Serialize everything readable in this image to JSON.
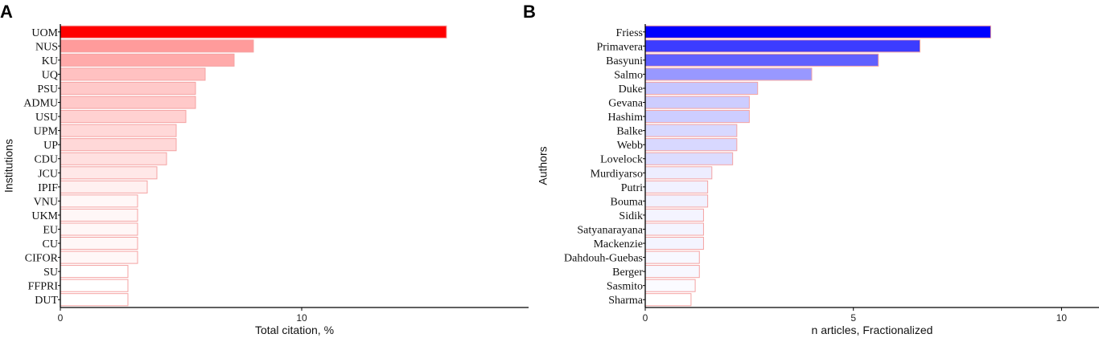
{
  "chart_data": [
    {
      "panel_label": "A",
      "type": "bar",
      "orientation": "horizontal",
      "ylabel": "Institutions",
      "xlabel": "Total citation, %",
      "categories": [
        "UOM",
        "NUS",
        "KU",
        "UQ",
        "PSU",
        "ADMU",
        "USU",
        "UPM",
        "UP",
        "CDU",
        "JCU",
        "IPIF",
        "VNU",
        "UKM",
        "EU",
        "CU",
        "CIFOR",
        "SU",
        "FFPRI",
        "DUT"
      ],
      "values": [
        16.0,
        8.0,
        7.2,
        6.0,
        5.6,
        5.6,
        5.2,
        4.8,
        4.8,
        4.4,
        4.0,
        3.6,
        3.2,
        3.2,
        3.2,
        3.2,
        3.2,
        2.8,
        2.8,
        2.8
      ],
      "xlim": [
        0,
        19.4
      ],
      "xticks": [
        0,
        10
      ],
      "colors": {
        "high": "#ff0000",
        "low": "#ffffff",
        "stroke": "#f4a3a3"
      }
    },
    {
      "panel_label": "B",
      "type": "bar",
      "orientation": "horizontal",
      "ylabel": "Authors",
      "xlabel": "n articles, Fractionalized",
      "categories": [
        "Friess",
        "Primavera",
        "Basyuni",
        "Salmo",
        "Duke",
        "Gevana",
        "Hashim",
        "Balke",
        "Webb",
        "Lovelock",
        "Murdiyarso",
        "Putri",
        "Bouma",
        "Sidik",
        "Satyanarayana",
        "Mackenzie",
        "Dahdouh-Guebas",
        "Berger",
        "Sasmito",
        "Sharma"
      ],
      "values": [
        8.3,
        6.6,
        5.6,
        4.0,
        2.7,
        2.5,
        2.5,
        2.2,
        2.2,
        2.1,
        1.6,
        1.5,
        1.5,
        1.4,
        1.4,
        1.4,
        1.3,
        1.3,
        1.2,
        1.1
      ],
      "xlim": [
        0,
        10.9
      ],
      "xticks": [
        0,
        5,
        10
      ],
      "colors": {
        "high": "#0000ff",
        "low": "#ffffff",
        "stroke": "#f4a3a3"
      }
    }
  ]
}
